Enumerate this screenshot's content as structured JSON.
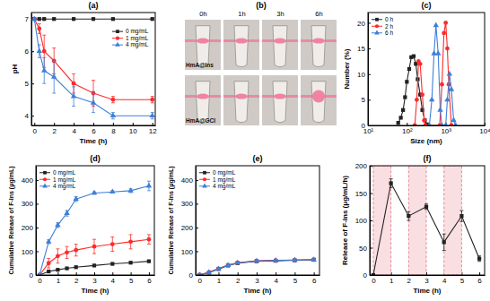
{
  "chart_data": [
    {
      "type": "line",
      "title": "(a)",
      "x_label": "Time (h)",
      "y_label": "pH",
      "x": [
        0,
        0.5,
        1,
        2,
        4,
        6,
        8,
        12
      ],
      "series": [
        {
          "name": "0 mg/mL",
          "color": "#222222",
          "marker": "square",
          "values": [
            7,
            7,
            7,
            7,
            7,
            7,
            7,
            7
          ]
        },
        {
          "name": "1 mg/mL",
          "color": "#ff2a2a",
          "marker": "circle",
          "values": [
            7,
            6.7,
            6.0,
            5.7,
            5.0,
            4.7,
            4.5,
            4.5
          ],
          "errors": [
            0,
            0.15,
            0.5,
            0.4,
            0.3,
            0.4,
            0.1,
            0.1
          ]
        },
        {
          "name": "4 mg/mL",
          "color": "#3f7fd8",
          "marker": "triangle",
          "values": [
            7,
            6.0,
            5.4,
            5.2,
            4.6,
            4.4,
            4.0,
            4.0
          ],
          "errors": [
            0,
            0.2,
            0.4,
            0.5,
            0.3,
            0.3,
            0.1,
            0.1
          ]
        }
      ],
      "xlim": [
        -0.3,
        12.3
      ],
      "xticks": [
        0,
        2,
        4,
        6,
        8,
        10,
        12
      ],
      "ylim": [
        3.7,
        7.2
      ],
      "yticks": [
        4,
        5,
        6,
        7
      ],
      "grid": false,
      "legend": "center right"
    },
    {
      "type": "image",
      "title": "(b)",
      "columns": [
        "0h",
        "1h",
        "3h",
        "6h"
      ],
      "rows": [
        "HmA@Ins",
        "HmA@GCI"
      ]
    },
    {
      "type": "line",
      "title": "(c)",
      "x_label": "Size (nm)",
      "y_label": "Number (%)",
      "log": "x",
      "series": [
        {
          "name": "0 h",
          "color": "#222222",
          "marker": "square",
          "x": [
            60,
            70,
            80,
            90,
            100,
            115,
            130,
            150,
            170,
            190,
            220,
            250,
            290,
            330
          ],
          "values": [
            0.5,
            1.5,
            3,
            5.5,
            8.5,
            11,
            13.3,
            13.5,
            12,
            9,
            6,
            3,
            1,
            0.2
          ]
        },
        {
          "name": "2 h",
          "color": "#ff2a2a",
          "marker": "circle",
          "x": [
            160,
            180,
            200,
            220,
            250,
            280,
            300,
            700,
            800,
            900,
            1000,
            1100,
            1200,
            1400
          ],
          "values": [
            0,
            5,
            12.5,
            12,
            6,
            1,
            0,
            0,
            8,
            18,
            20,
            15,
            8,
            0
          ]
        },
        {
          "name": "6 h",
          "color": "#3f7fd8",
          "marker": "triangle",
          "x": [
            380,
            440,
            500,
            560,
            640,
            720,
            800,
            1000,
            1100,
            1250,
            1400,
            1600,
            1800
          ],
          "values": [
            0,
            5,
            14,
            19.5,
            14,
            3,
            0,
            0,
            5,
            10,
            7,
            1,
            0
          ]
        }
      ],
      "xlim": [
        10,
        10000
      ],
      "xticks": [
        {
          "value": 10,
          "label": "10¹"
        },
        {
          "value": 100,
          "label": "10²"
        },
        {
          "value": 1000,
          "label": "10³"
        },
        {
          "value": 10000,
          "label": "10⁴"
        }
      ],
      "ylim": [
        0,
        22
      ],
      "yticks": [
        0,
        5,
        10,
        15,
        20
      ],
      "grid": false,
      "legend": "upper left"
    },
    {
      "type": "line",
      "title": "(d)",
      "x_label": "Time (h)",
      "y_label": "Cumulative Release of F-Ins (μg/mL)",
      "x": [
        0,
        0.5,
        1,
        1.5,
        2,
        3,
        4,
        5,
        6
      ],
      "series": [
        {
          "name": "0 mg/mL",
          "color": "#222222",
          "marker": "square",
          "values": [
            0,
            15,
            22,
            28,
            33,
            40,
            47,
            52,
            58
          ]
        },
        {
          "name": "1 mg/mL",
          "color": "#ff2a2a",
          "marker": "circle",
          "values": [
            0,
            50,
            80,
            95,
            105,
            120,
            130,
            140,
            150
          ],
          "errors": [
            0,
            20,
            30,
            25,
            25,
            30,
            30,
            30,
            20
          ]
        },
        {
          "name": "4 mg/mL",
          "color": "#3f7fd8",
          "marker": "triangle",
          "values": [
            0,
            140,
            210,
            260,
            320,
            345,
            350,
            355,
            375
          ],
          "errors": [
            0,
            8,
            10,
            12,
            10,
            5,
            5,
            8,
            20
          ]
        }
      ],
      "xlim": [
        -0.2,
        6.3
      ],
      "xticks": [
        0,
        1,
        2,
        3,
        4,
        5,
        6
      ],
      "ylim": [
        0,
        460
      ],
      "yticks": [
        0,
        100,
        200,
        300,
        400
      ],
      "grid": false,
      "legend": "upper left"
    },
    {
      "type": "line",
      "title": "(e)",
      "x_label": "Time (h)",
      "y_label": "Cumulative Release of F-Ins (μg/mL)",
      "x": [
        0,
        0.5,
        1,
        1.5,
        2,
        3,
        4,
        5,
        6
      ],
      "series": [
        {
          "name": "0 mg/mL",
          "color": "#222222",
          "marker": "square",
          "values": [
            0,
            10,
            25,
            40,
            50,
            58,
            60,
            62,
            64
          ]
        },
        {
          "name": "1 mg/mL",
          "color": "#ff2a2a",
          "marker": "circle",
          "values": [
            0,
            12,
            27,
            42,
            52,
            60,
            62,
            63,
            65
          ]
        },
        {
          "name": "4 mg/mL",
          "color": "#3f7fd8",
          "marker": "triangle",
          "values": [
            0,
            11,
            26,
            41,
            51,
            59,
            61,
            63,
            64
          ]
        }
      ],
      "xlim": [
        -0.2,
        6.3
      ],
      "xticks": [
        0,
        1,
        2,
        3,
        4,
        5,
        6
      ],
      "ylim": [
        0,
        460
      ],
      "yticks": [
        0,
        100,
        200,
        300,
        400
      ],
      "grid": false,
      "legend": "upper left"
    },
    {
      "type": "line",
      "title": "(f)",
      "x_label": "Time (h)",
      "y_label": "Release of F-Ins (μg/mL/h)",
      "x": [
        0,
        1,
        2,
        3,
        4,
        5,
        6
      ],
      "series": [
        {
          "color": "#222222",
          "marker": "square",
          "values": [
            0,
            168,
            108,
            125,
            60,
            108,
            30
          ],
          "errors": [
            0,
            8,
            8,
            5,
            15,
            10,
            5
          ]
        }
      ],
      "bands": [
        [
          0,
          1
        ],
        [
          2,
          3
        ],
        [
          4,
          5
        ]
      ],
      "xlim": [
        -0.2,
        6.3
      ],
      "xticks": [
        0,
        1,
        2,
        3,
        4,
        5,
        6
      ],
      "ylim": [
        0,
        200
      ],
      "yticks": [
        0,
        50,
        100,
        150,
        200
      ],
      "grid": false
    }
  ]
}
